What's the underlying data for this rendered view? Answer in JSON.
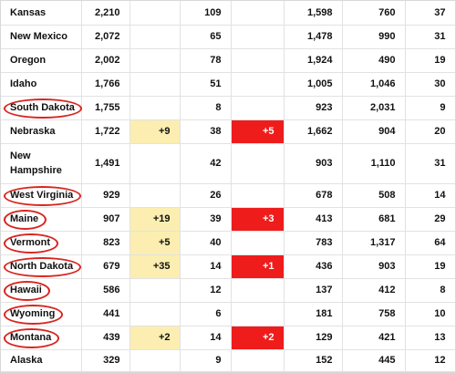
{
  "rows": [
    {
      "state": "Kansas",
      "c1": "2,210",
      "c2": "",
      "c3": "109",
      "c4": "",
      "c5": "1,598",
      "c6": "760",
      "c7": "37",
      "circled": false
    },
    {
      "state": "New Mexico",
      "c1": "2,072",
      "c2": "",
      "c3": "65",
      "c4": "",
      "c5": "1,478",
      "c6": "990",
      "c7": "31",
      "circled": false
    },
    {
      "state": "Oregon",
      "c1": "2,002",
      "c2": "",
      "c3": "78",
      "c4": "",
      "c5": "1,924",
      "c6": "490",
      "c7": "19",
      "circled": false
    },
    {
      "state": "Idaho",
      "c1": "1,766",
      "c2": "",
      "c3": "51",
      "c4": "",
      "c5": "1,005",
      "c6": "1,046",
      "c7": "30",
      "circled": false
    },
    {
      "state": "South Dakota",
      "c1": "1,755",
      "c2": "",
      "c3": "8",
      "c4": "",
      "c5": "923",
      "c6": "2,031",
      "c7": "9",
      "circled": true
    },
    {
      "state": "Nebraska",
      "c1": "1,722",
      "c2": "+9",
      "c3": "38",
      "c4": "+5",
      "c5": "1,662",
      "c6": "904",
      "c7": "20",
      "circled": false
    },
    {
      "state": "New Hampshire",
      "c1": "1,491",
      "c2": "",
      "c3": "42",
      "c4": "",
      "c5": "903",
      "c6": "1,110",
      "c7": "31",
      "circled": false
    },
    {
      "state": "West Virginia",
      "c1": "929",
      "c2": "",
      "c3": "26",
      "c4": "",
      "c5": "678",
      "c6": "508",
      "c7": "14",
      "circled": true
    },
    {
      "state": "Maine",
      "c1": "907",
      "c2": "+19",
      "c3": "39",
      "c4": "+3",
      "c5": "413",
      "c6": "681",
      "c7": "29",
      "circled": true
    },
    {
      "state": "Vermont",
      "c1": "823",
      "c2": "+5",
      "c3": "40",
      "c4": "",
      "c5": "783",
      "c6": "1,317",
      "c7": "64",
      "circled": true
    },
    {
      "state": "North Dakota",
      "c1": "679",
      "c2": "+35",
      "c3": "14",
      "c4": "+1",
      "c5": "436",
      "c6": "903",
      "c7": "19",
      "circled": true
    },
    {
      "state": "Hawaii",
      "c1": "586",
      "c2": "",
      "c3": "12",
      "c4": "",
      "c5": "137",
      "c6": "412",
      "c7": "8",
      "circled": true
    },
    {
      "state": "Wyoming",
      "c1": "441",
      "c2": "",
      "c3": "6",
      "c4": "",
      "c5": "181",
      "c6": "758",
      "c7": "10",
      "circled": true
    },
    {
      "state": "Montana",
      "c1": "439",
      "c2": "+2",
      "c3": "14",
      "c4": "+2",
      "c5": "129",
      "c6": "421",
      "c7": "13",
      "circled": true
    },
    {
      "state": "Alaska",
      "c1": "329",
      "c2": "",
      "c3": "9",
      "c4": "",
      "c5": "152",
      "c6": "445",
      "c7": "12",
      "circled": false
    }
  ],
  "colors": {
    "new_cases_highlight": "#fbeeb0",
    "new_deaths_highlight": "#ef1c1c",
    "circle_annotation": "#d8251f",
    "grid_line": "#e2e2e2"
  }
}
